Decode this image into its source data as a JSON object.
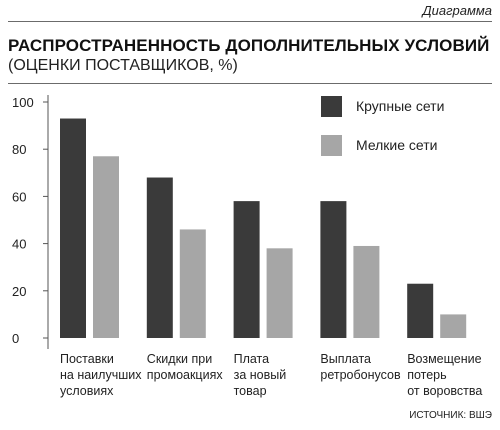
{
  "header": {
    "rubric": "Диаграмма",
    "title": "РАСПРОСТРАНЕННОСТЬ ДОПОЛНИТЕЛЬНЫХ УСЛОВИЙ",
    "subtitle": "(ОЦЕНКИ ПОСТАВЩИКОВ, %)"
  },
  "source": "ИСТОЧНИК: ВШЭ",
  "colors": {
    "dark": "#3a3a3a",
    "light": "#a6a6a6",
    "axis": "#555555"
  },
  "chart_data": {
    "type": "bar",
    "title": "РАСПРОСТРАНЕННОСТЬ ДОПОЛНИТЕЛЬНЫХ УСЛОВИЙ",
    "subtitle": "(ОЦЕНКИ ПОСТАВЩИКОВ, %)",
    "categories": [
      [
        "Поставки",
        "на наилучших",
        "условиях"
      ],
      [
        "Скидки при",
        "промоакциях"
      ],
      [
        "Плата",
        "за новый",
        "товар"
      ],
      [
        "Выплата",
        "ретробонусов"
      ],
      [
        "Возмещение",
        "потерь",
        "от воровства"
      ]
    ],
    "series": [
      {
        "name": "Крупные сети",
        "color": "#3a3a3a",
        "values": [
          93,
          68,
          58,
          58,
          23
        ]
      },
      {
        "name": "Мелкие сети",
        "color": "#a6a6a6",
        "values": [
          77,
          46,
          38,
          39,
          10
        ]
      }
    ],
    "yticks": [
      0,
      20,
      40,
      60,
      80,
      100
    ],
    "ylim": [
      0,
      100
    ],
    "grid": false,
    "legend_position": "top-right"
  }
}
